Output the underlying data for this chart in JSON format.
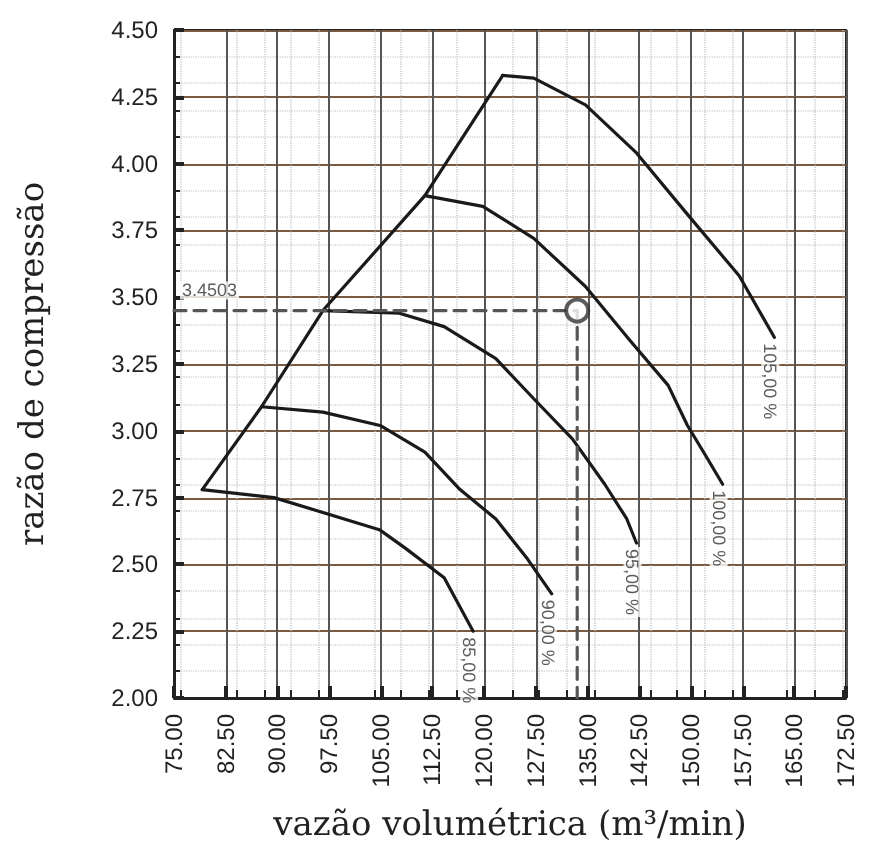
{
  "chart_data": {
    "type": "line",
    "xlabel": "vazão volumétrica (m³/min)",
    "ylabel": "razão de compressão",
    "series": [
      {
        "color": "#1a1a1a",
        "x": [
          79.1,
          89.5,
          104.8,
          108.6,
          114.2,
          118.4
        ],
        "values": [
          2.78,
          2.75,
          2.63,
          2.56,
          2.45,
          2.25
        ]
      },
      {
        "color": "#1a1a1a",
        "x": [
          87.7,
          96.6,
          104.9,
          111.4,
          116.5,
          121.7,
          126.3,
          129.8
        ],
        "values": [
          3.09,
          3.07,
          3.02,
          2.92,
          2.78,
          2.67,
          2.52,
          2.39
        ]
      },
      {
        "color": "#1a1a1a",
        "x": [
          96.6,
          107.7,
          114.2,
          121.7,
          127.2,
          132.8,
          137.5,
          140.7,
          142.1
        ],
        "values": [
          3.45,
          3.44,
          3.39,
          3.27,
          3.12,
          2.97,
          2.8,
          2.67,
          2.58
        ]
      },
      {
        "color": "#1a1a1a",
        "x": [
          111.4,
          119.8,
          127.2,
          134.7,
          141.1,
          146.7,
          149.5,
          152.3,
          154.6
        ],
        "values": [
          3.88,
          3.84,
          3.72,
          3.54,
          3.34,
          3.17,
          3.02,
          2.9,
          2.8
        ]
      },
      {
        "color": "#1a1a1a",
        "x": [
          122.7,
          127.2,
          134.7,
          142.1,
          149.5,
          157.0,
          162.1
        ],
        "values": [
          4.33,
          4.32,
          4.22,
          4.04,
          3.81,
          3.58,
          3.35
        ]
      },
      {
        "color": "#1a1a1a",
        "x": [
          79.1,
          87.7,
          96.6,
          111.4,
          122.7
        ],
        "values": [
          2.78,
          3.09,
          3.45,
          3.88,
          4.33
        ]
      },
      {
        "color": "#555555",
        "line_style": "dashed",
        "x": [
          75,
          133.5,
          133.5
        ],
        "values": [
          3.45,
          3.45,
          2.0
        ]
      },
      {
        "type": "scatter",
        "marker": "circle",
        "color": "#333333",
        "x": [
          133.5
        ],
        "values": [
          3.45
        ]
      }
    ],
    "annotations": [
      {
        "text": "3.4503",
        "x": 75,
        "y": 3.4503
      },
      {
        "text": "85,00 %",
        "x": 118.4,
        "y": 2.25
      },
      {
        "text": "90,00 %",
        "x": 129.8,
        "y": 2.39
      },
      {
        "text": "95,00 %",
        "x": 142.1,
        "y": 2.58
      },
      {
        "text": "100,00 %",
        "x": 154.6,
        "y": 2.8
      },
      {
        "text": "105,00 %",
        "x": 162.1,
        "y": 3.35
      }
    ],
    "xlim": [
      75,
      172.5
    ],
    "xticks": [
      {
        "value": 75,
        "label": "75.00"
      },
      {
        "value": 82.5,
        "label": "82.50"
      },
      {
        "value": 90,
        "label": "90.00"
      },
      {
        "value": 97.5,
        "label": "97.50"
      },
      {
        "value": 105,
        "label": "105.00"
      },
      {
        "value": 112.5,
        "label": "112.50"
      },
      {
        "value": 120,
        "label": "120.00"
      },
      {
        "value": 127.5,
        "label": "127.50"
      },
      {
        "value": 135,
        "label": "135.00"
      },
      {
        "value": 142.5,
        "label": "142.50"
      },
      {
        "value": 150,
        "label": "150.00"
      },
      {
        "value": 157.5,
        "label": "157.50"
      },
      {
        "value": 165,
        "label": "165.00"
      },
      {
        "value": 172.5,
        "label": "172.50"
      }
    ],
    "ylim": [
      2,
      4.5
    ],
    "yticks": [
      {
        "value": 2,
        "label": "2.00"
      },
      {
        "value": 2.25,
        "label": "2.25"
      },
      {
        "value": 2.5,
        "label": "2.50"
      },
      {
        "value": 2.75,
        "label": "2.75"
      },
      {
        "value": 3,
        "label": "3.00"
      },
      {
        "value": 3.25,
        "label": "3.25"
      },
      {
        "value": 3.5,
        "label": "3.50"
      },
      {
        "value": 3.75,
        "label": "3.75"
      },
      {
        "value": 4,
        "label": "4.00"
      },
      {
        "value": 4.25,
        "label": "4.25"
      },
      {
        "value": 4.5,
        "label": "4.50"
      }
    ],
    "grid": true,
    "marker": "none",
    "line_style": "solid"
  }
}
